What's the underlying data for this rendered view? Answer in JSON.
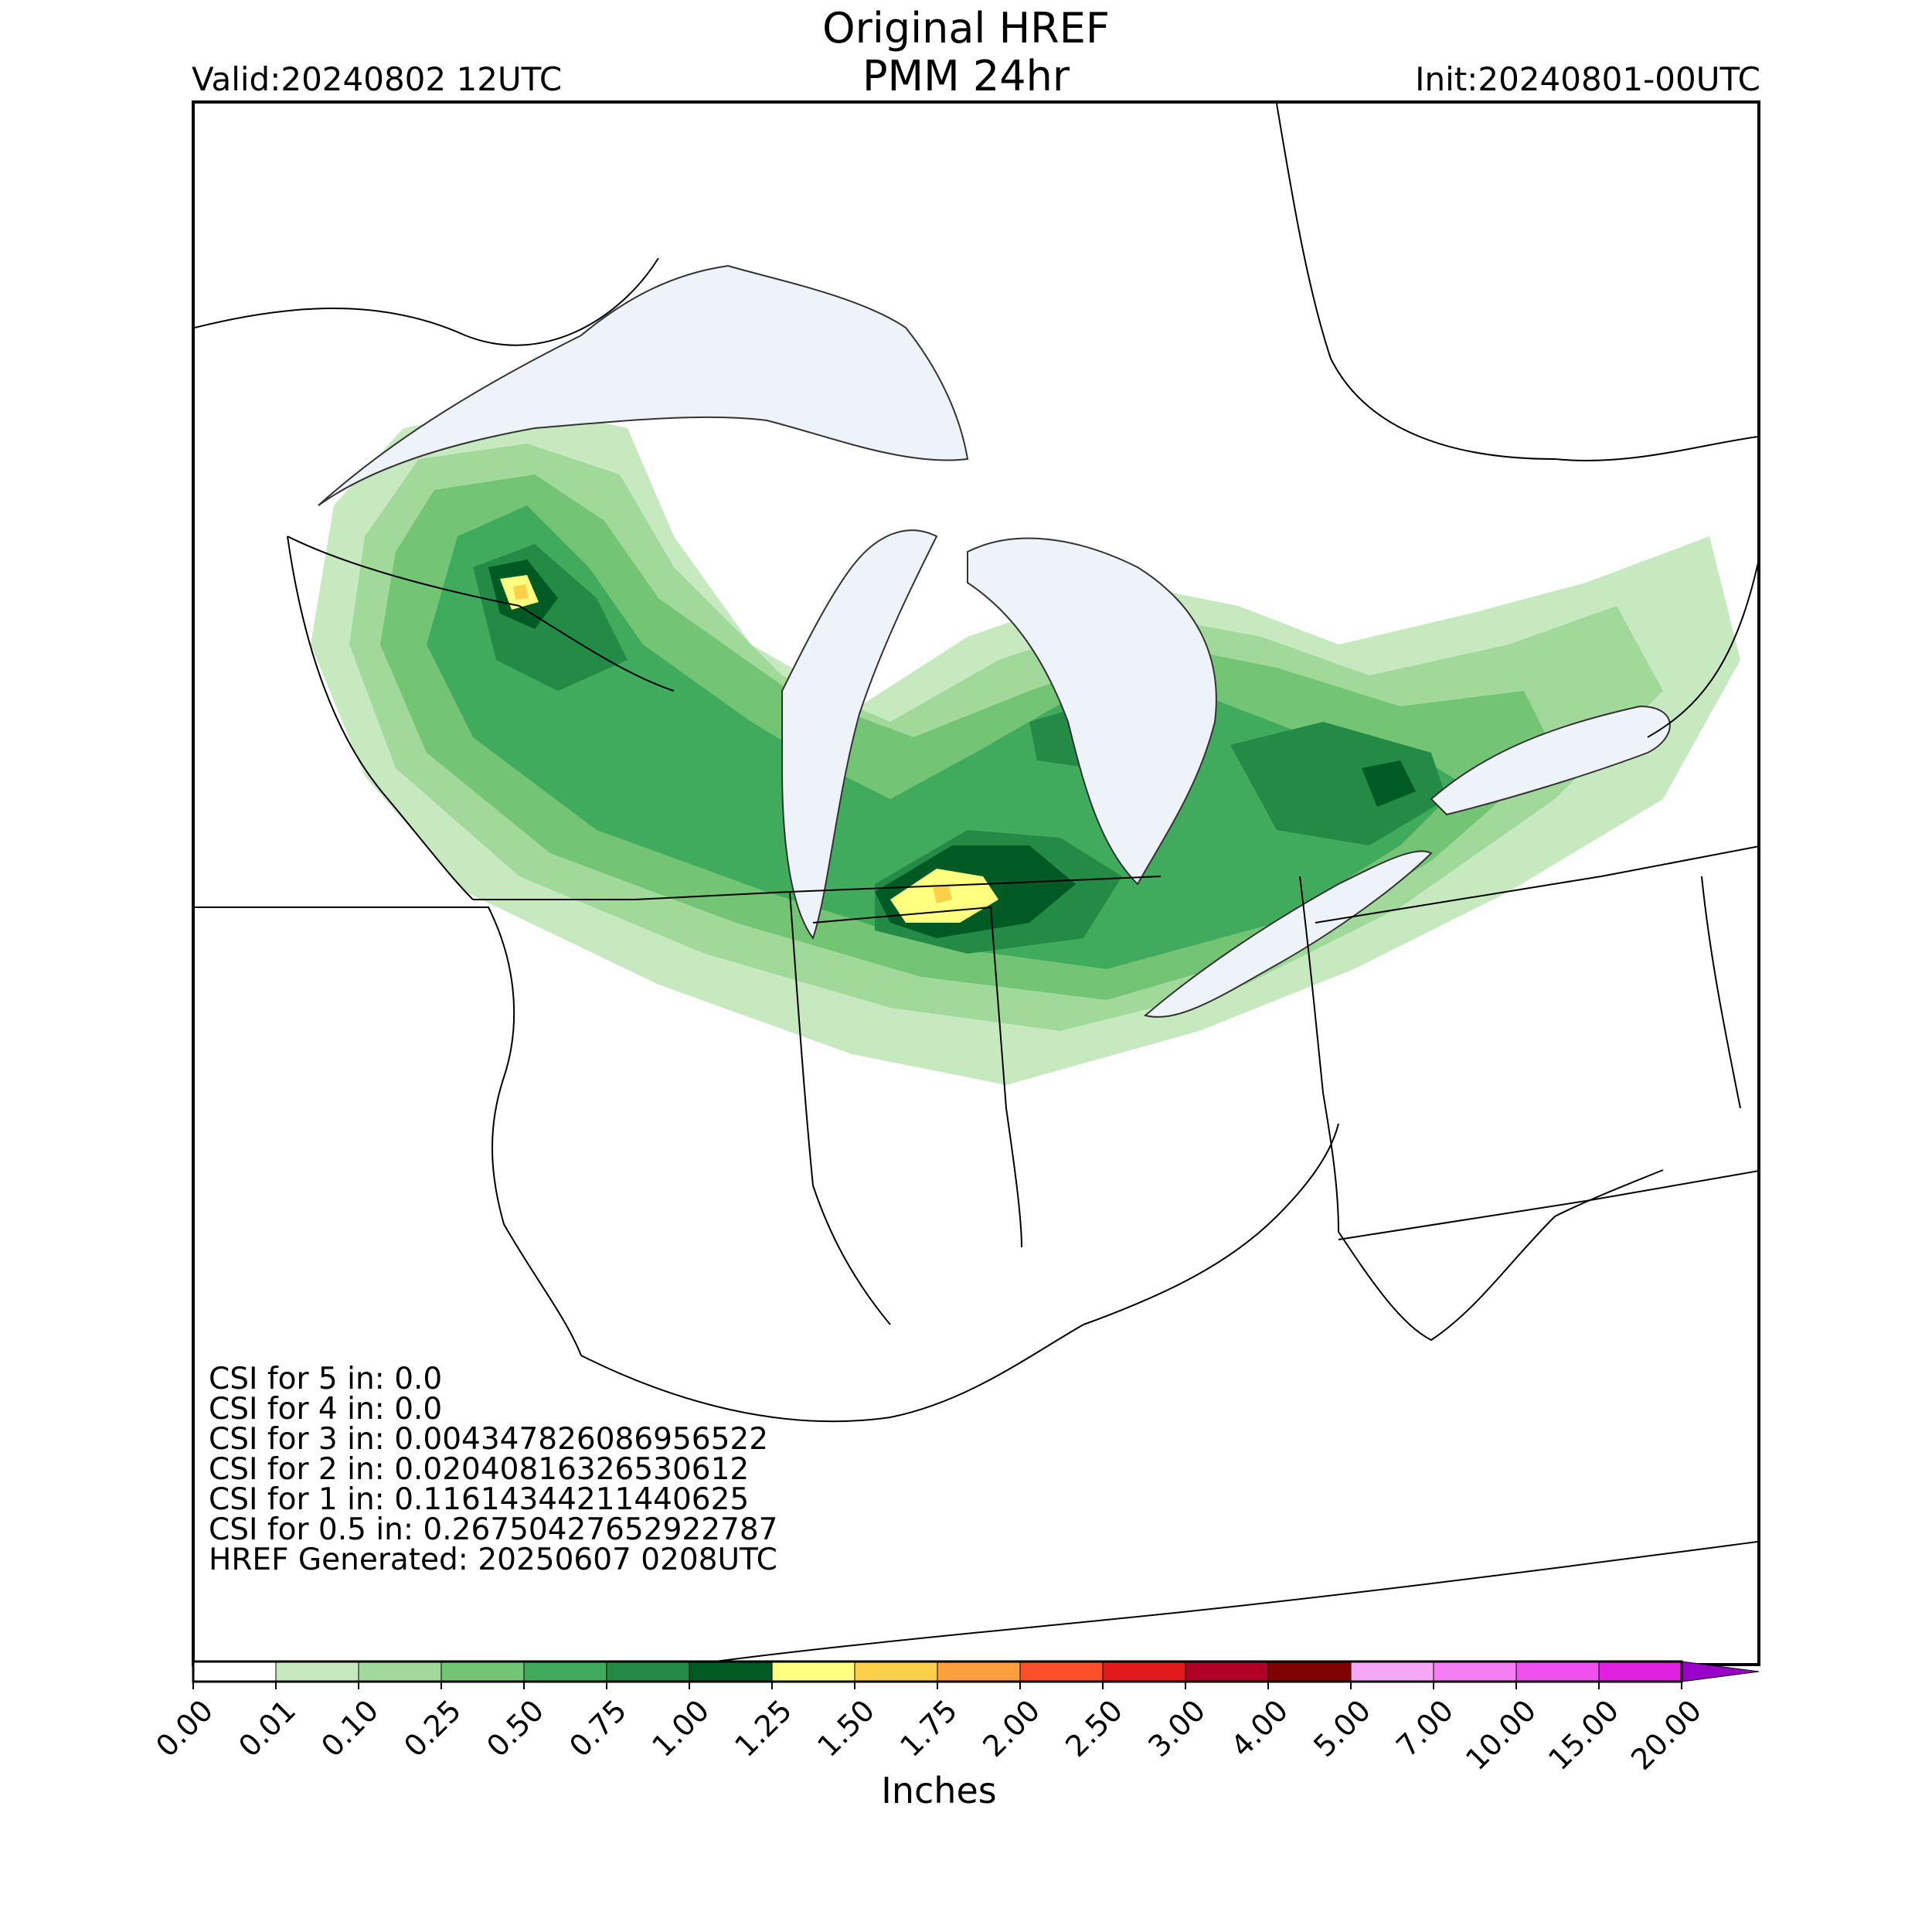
{
  "title": {
    "line1": "Original HREF",
    "line2": "PMM 24hr"
  },
  "valid": "Valid:20240802 12UTC",
  "init": "Init:20240801-00UTC",
  "stats": [
    "CSI for 5 in: 0.0",
    "CSI for 4 in: 0.0",
    "CSI for 3 in: 0.004347826086956522",
    "CSI for 2 in: 0.02040816326530612",
    "CSI for 1 in: 0.11614344211440625",
    "CSI for 0.5 in: 0.26750427652922787",
    "HREF Generated: 20250607 0208UTC"
  ],
  "colorbar": {
    "label": "Inches",
    "ticks": [
      "0.00",
      "0.01",
      "0.10",
      "0.25",
      "0.50",
      "0.75",
      "1.00",
      "1.25",
      "1.50",
      "1.75",
      "2.00",
      "2.50",
      "3.00",
      "4.00",
      "5.00",
      "7.00",
      "10.00",
      "15.00",
      "20.00"
    ],
    "colors": [
      "#ffffff",
      "#c7e9c0",
      "#a1d99b",
      "#74c476",
      "#41ab5d",
      "#238b45",
      "#005a24",
      "#ffff80",
      "#fdd049",
      "#fd9f3a",
      "#fc4e2a",
      "#e31a1c",
      "#b10026",
      "#800000",
      "#f5a7f5",
      "#f57ef5",
      "#f050f0",
      "#e020e0",
      "#9b00c8"
    ]
  },
  "map": {
    "lake_color": "#eef3fa",
    "border_color": "#000000",
    "precip_blobs": [
      {
        "level": 1,
        "pts": [
          [
            270,
            420
          ],
          [
            420,
            390
          ],
          [
            560,
            420
          ],
          [
            620,
            560
          ],
          [
            720,
            700
          ],
          [
            860,
            780
          ],
          [
            1000,
            690
          ],
          [
            1200,
            620
          ],
          [
            1350,
            650
          ],
          [
            1480,
            700
          ],
          [
            1650,
            660
          ],
          [
            1800,
            620
          ],
          [
            1960,
            560
          ],
          [
            2000,
            720
          ],
          [
            1900,
            900
          ],
          [
            1700,
            1020
          ],
          [
            1500,
            1120
          ],
          [
            1300,
            1200
          ],
          [
            1050,
            1270
          ],
          [
            850,
            1230
          ],
          [
            600,
            1140
          ],
          [
            350,
            1020
          ],
          [
            220,
            870
          ],
          [
            150,
            700
          ],
          [
            180,
            520
          ]
        ]
      },
      {
        "level": 2,
        "pts": [
          [
            290,
            460
          ],
          [
            430,
            440
          ],
          [
            550,
            480
          ],
          [
            620,
            600
          ],
          [
            760,
            740
          ],
          [
            900,
            800
          ],
          [
            1040,
            720
          ],
          [
            1220,
            660
          ],
          [
            1380,
            690
          ],
          [
            1520,
            740
          ],
          [
            1700,
            700
          ],
          [
            1840,
            650
          ],
          [
            1900,
            760
          ],
          [
            1760,
            900
          ],
          [
            1560,
            1040
          ],
          [
            1360,
            1140
          ],
          [
            1120,
            1200
          ],
          [
            900,
            1170
          ],
          [
            660,
            1100
          ],
          [
            420,
            1000
          ],
          [
            260,
            860
          ],
          [
            200,
            700
          ],
          [
            220,
            560
          ]
        ]
      },
      {
        "level": 3,
        "pts": [
          [
            310,
            500
          ],
          [
            440,
            480
          ],
          [
            530,
            540
          ],
          [
            600,
            640
          ],
          [
            770,
            760
          ],
          [
            930,
            820
          ],
          [
            1080,
            760
          ],
          [
            1250,
            700
          ],
          [
            1400,
            730
          ],
          [
            1560,
            780
          ],
          [
            1720,
            760
          ],
          [
            1760,
            840
          ],
          [
            1600,
            980
          ],
          [
            1420,
            1090
          ],
          [
            1180,
            1160
          ],
          [
            940,
            1130
          ],
          [
            700,
            1060
          ],
          [
            460,
            970
          ],
          [
            300,
            840
          ],
          [
            240,
            700
          ],
          [
            260,
            580
          ]
        ]
      },
      {
        "level": 4,
        "pts": [
          [
            340,
            560
          ],
          [
            430,
            520
          ],
          [
            510,
            600
          ],
          [
            580,
            700
          ],
          [
            720,
            800
          ],
          [
            820,
            860
          ],
          [
            900,
            900
          ],
          [
            1010,
            840
          ],
          [
            1150,
            760
          ],
          [
            1290,
            760
          ],
          [
            1420,
            810
          ],
          [
            1560,
            830
          ],
          [
            1640,
            880
          ],
          [
            1560,
            960
          ],
          [
            1400,
            1060
          ],
          [
            1180,
            1120
          ],
          [
            960,
            1090
          ],
          [
            740,
            1020
          ],
          [
            520,
            940
          ],
          [
            360,
            820
          ],
          [
            300,
            700
          ]
        ]
      },
      {
        "level": 5,
        "pts": [
          [
            360,
            600
          ],
          [
            440,
            570
          ],
          [
            520,
            640
          ],
          [
            560,
            720
          ],
          [
            470,
            760
          ],
          [
            390,
            720
          ]
        ]
      },
      {
        "level": 5,
        "pts": [
          [
            880,
            1010
          ],
          [
            1000,
            940
          ],
          [
            1120,
            950
          ],
          [
            1200,
            1000
          ],
          [
            1150,
            1080
          ],
          [
            1000,
            1100
          ],
          [
            880,
            1070
          ]
        ]
      },
      {
        "level": 5,
        "pts": [
          [
            1340,
            830
          ],
          [
            1460,
            800
          ],
          [
            1600,
            840
          ],
          [
            1620,
            900
          ],
          [
            1520,
            960
          ],
          [
            1400,
            940
          ]
        ]
      },
      {
        "level": 5,
        "pts": [
          [
            1080,
            800
          ],
          [
            1180,
            770
          ],
          [
            1230,
            820
          ],
          [
            1160,
            860
          ],
          [
            1090,
            850
          ]
        ]
      },
      {
        "level": 6,
        "pts": [
          [
            880,
            1020
          ],
          [
            980,
            960
          ],
          [
            1080,
            960
          ],
          [
            1140,
            1010
          ],
          [
            1080,
            1060
          ],
          [
            960,
            1080
          ],
          [
            900,
            1060
          ]
        ]
      },
      {
        "level": 6,
        "pts": [
          [
            380,
            600
          ],
          [
            430,
            590
          ],
          [
            470,
            640
          ],
          [
            440,
            680
          ],
          [
            395,
            660
          ]
        ]
      },
      {
        "level": 6,
        "pts": [
          [
            1510,
            860
          ],
          [
            1560,
            850
          ],
          [
            1580,
            890
          ],
          [
            1530,
            910
          ]
        ]
      },
      {
        "level": 7,
        "pts": [
          [
            900,
            1030
          ],
          [
            960,
            990
          ],
          [
            1020,
            1000
          ],
          [
            1040,
            1030
          ],
          [
            990,
            1060
          ],
          [
            920,
            1060
          ]
        ]
      },
      {
        "level": 7,
        "pts": [
          [
            395,
            615
          ],
          [
            430,
            610
          ],
          [
            445,
            645
          ],
          [
            410,
            655
          ]
        ]
      },
      {
        "level": 8,
        "pts": [
          [
            955,
            1015
          ],
          [
            975,
            1010
          ],
          [
            980,
            1030
          ],
          [
            960,
            1035
          ]
        ]
      },
      {
        "level": 8,
        "pts": [
          [
            412,
            625
          ],
          [
            428,
            622
          ],
          [
            432,
            640
          ],
          [
            415,
            642
          ]
        ]
      }
    ]
  }
}
